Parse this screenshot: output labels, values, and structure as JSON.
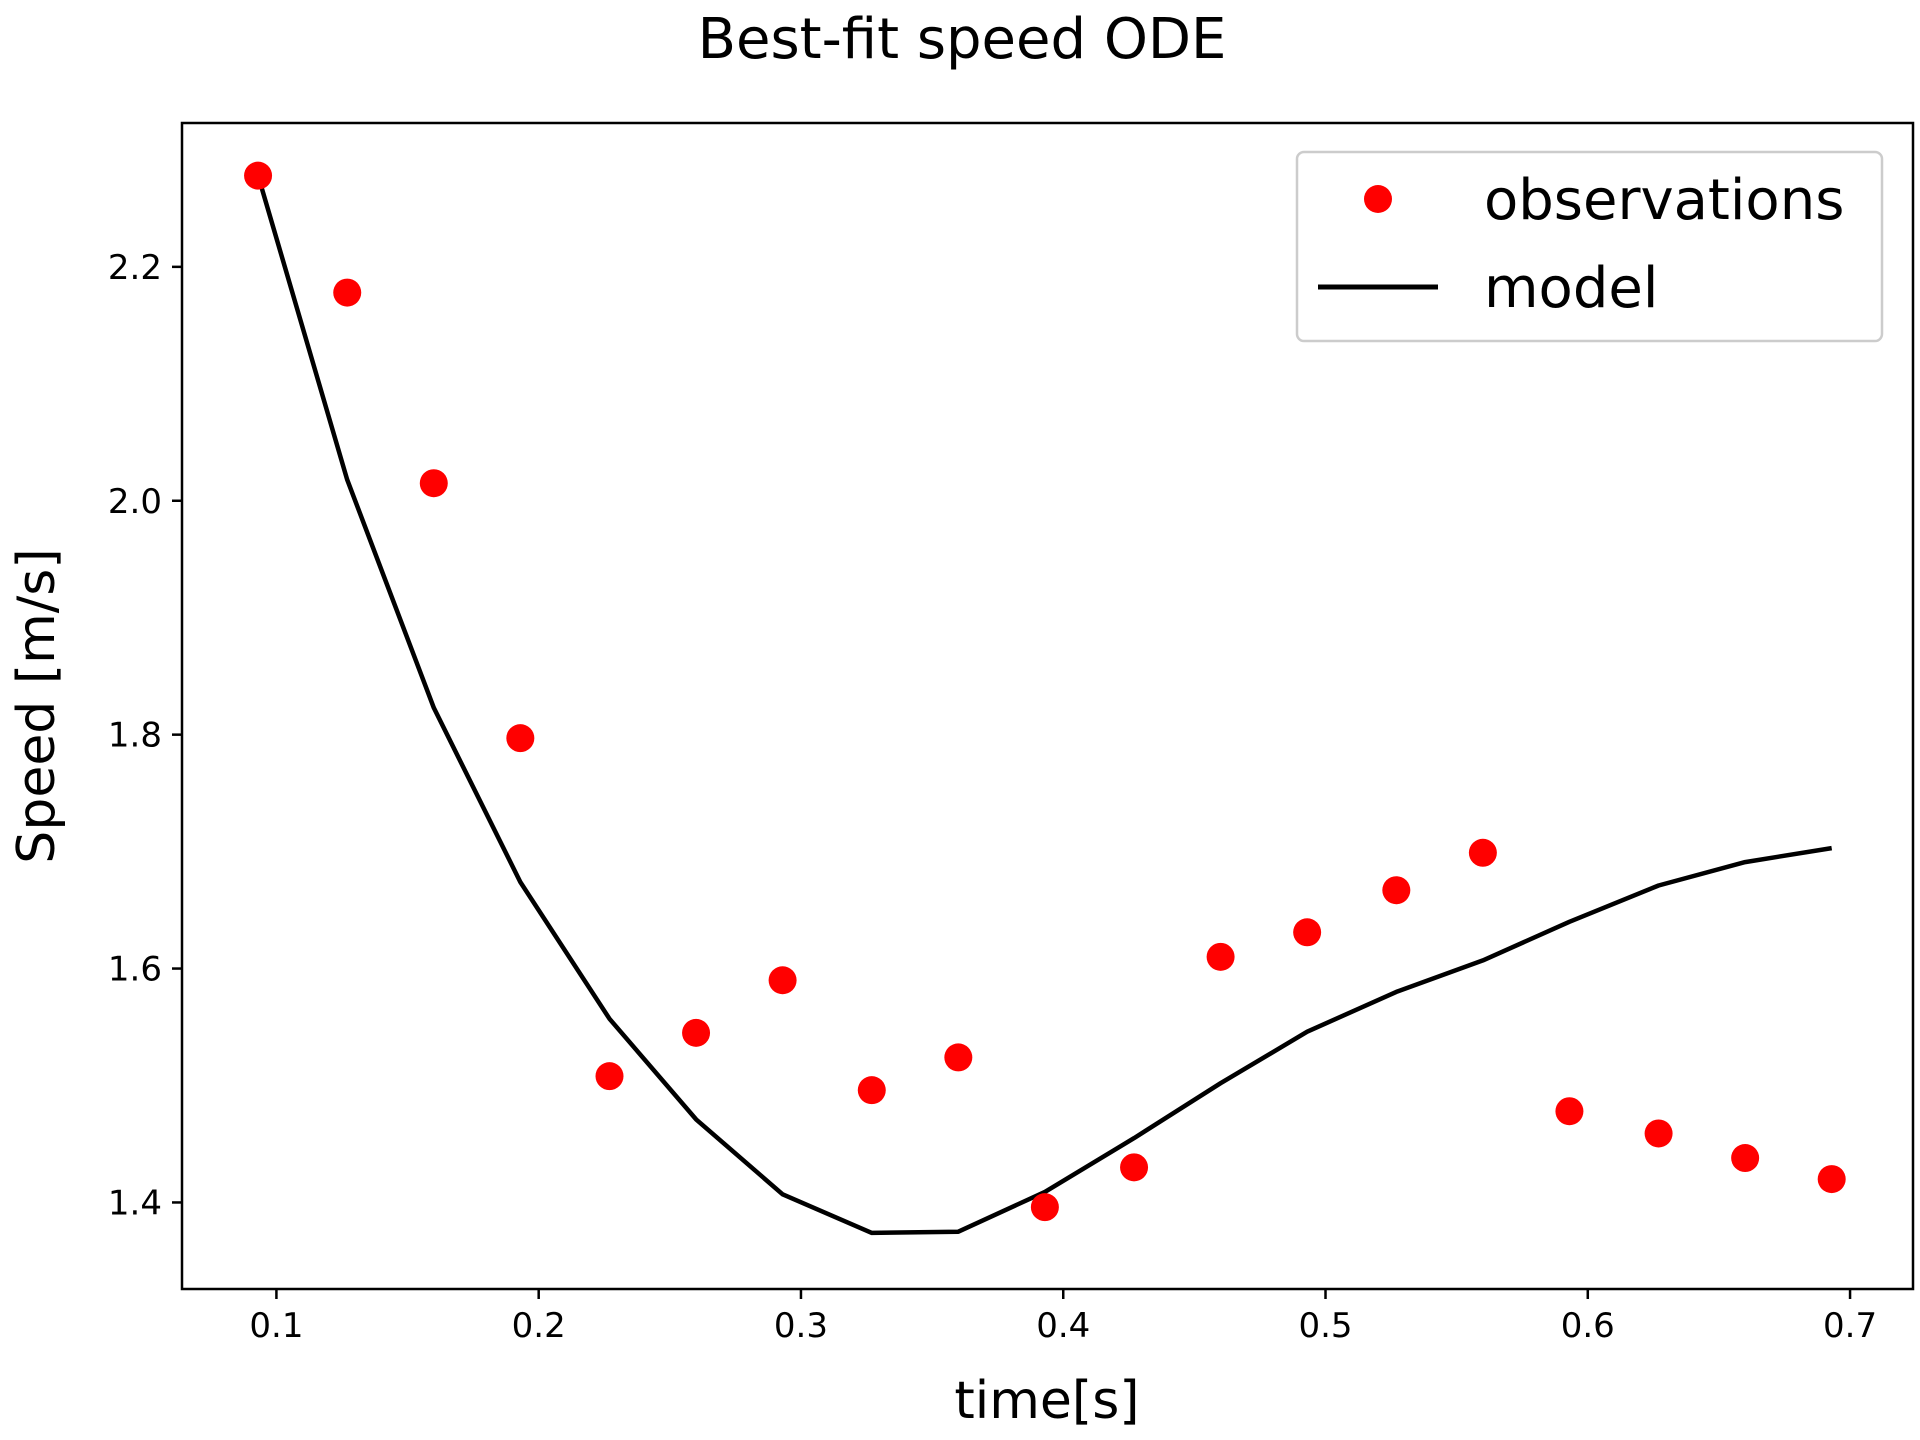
{
  "chart_data": {
    "type": "scatter",
    "title": "Best-fit speed ODE",
    "xlabel": "time[s]",
    "ylabel": "Speed [m/s]",
    "xlim": [
      0.064,
      0.724
    ],
    "ylim": [
      1.326,
      2.323
    ],
    "xticks": [
      0.1,
      0.2,
      0.3,
      0.4,
      0.5,
      0.6,
      0.7
    ],
    "xtick_labels": [
      "0.1",
      "0.2",
      "0.3",
      "0.4",
      "0.5",
      "0.6",
      "0.7"
    ],
    "yticks": [
      1.4,
      1.6,
      1.8,
      2.0,
      2.2
    ],
    "ytick_labels": [
      "1.4",
      "1.6",
      "1.8",
      "2.0",
      "2.2"
    ],
    "grid": false,
    "legend_position": "top-right",
    "series": [
      {
        "name": "observations",
        "kind": "points",
        "color": "#ff0000",
        "x": [
          0.093,
          0.127,
          0.16,
          0.193,
          0.227,
          0.26,
          0.293,
          0.327,
          0.36,
          0.393,
          0.427,
          0.46,
          0.493,
          0.527,
          0.56,
          0.593,
          0.627,
          0.66,
          0.693
        ],
        "y": [
          2.278,
          2.178,
          2.015,
          1.797,
          1.508,
          1.545,
          1.59,
          1.496,
          1.524,
          1.396,
          1.43,
          1.61,
          1.631,
          1.667,
          1.699,
          1.478,
          1.459,
          1.438,
          1.42
        ]
      },
      {
        "name": "model",
        "kind": "line",
        "color": "#000000",
        "x": [
          0.093,
          0.127,
          0.16,
          0.193,
          0.227,
          0.26,
          0.293,
          0.327,
          0.36,
          0.393,
          0.427,
          0.46,
          0.493,
          0.527,
          0.56,
          0.593,
          0.627,
          0.66,
          0.693
        ],
        "y": [
          2.278,
          2.018,
          1.823,
          1.674,
          1.557,
          1.471,
          1.407,
          1.374,
          1.375,
          1.409,
          1.455,
          1.502,
          1.546,
          1.58,
          1.607,
          1.64,
          1.671,
          1.691,
          1.703
        ]
      }
    ]
  }
}
